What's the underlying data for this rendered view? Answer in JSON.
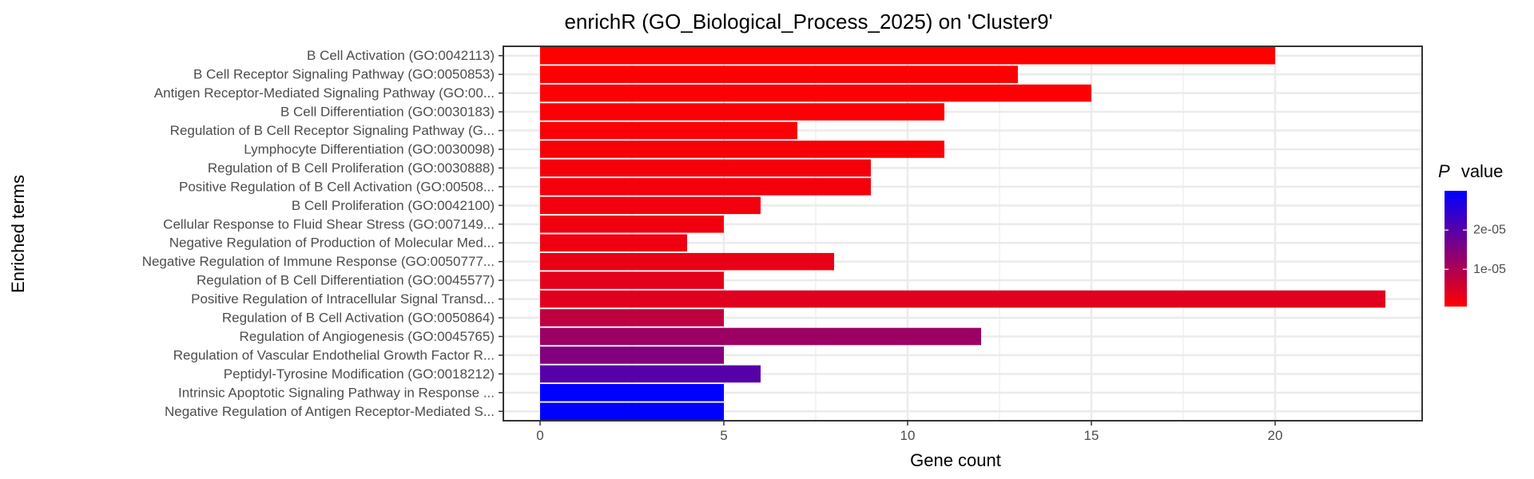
{
  "chart_data": {
    "type": "bar",
    "orientation": "horizontal",
    "title": "enrichR (GO_Biological_Process_2025) on 'Cluster9'",
    "xlabel": "Gene count",
    "ylabel": "Enriched terms",
    "xlim": [
      -1,
      24
    ],
    "x_ticks": [
      0,
      5,
      10,
      15,
      20
    ],
    "grid": true,
    "legend": {
      "title_italic": "P",
      "title_rest": "value",
      "placement": "right",
      "ticks": [
        {
          "label": "2e-05",
          "value": 2e-05
        },
        {
          "label": "1e-05",
          "value": 1e-05
        }
      ],
      "range": [
        5e-07,
        3e-05
      ],
      "low_color": "#ff0000",
      "high_color": "#0000ff"
    },
    "categories": [
      "B Cell Activation (GO:0042113)",
      "B Cell Receptor Signaling Pathway (GO:0050853)",
      "Antigen Receptor-Mediated Signaling Pathway (GO:00...",
      "B Cell Differentiation (GO:0030183)",
      "Regulation of B Cell Receptor Signaling Pathway (G...",
      "Lymphocyte Differentiation (GO:0030098)",
      "Regulation of B Cell Proliferation (GO:0030888)",
      "Positive Regulation of B Cell Activation (GO:00508...",
      "B Cell Proliferation (GO:0042100)",
      "Cellular Response to Fluid Shear Stress (GO:007149...",
      "Negative Regulation of Production of Molecular Med...",
      "Negative Regulation of Immune Response (GO:0050777...",
      "Regulation of B Cell Differentiation (GO:0045577)",
      "Positive Regulation of Intracellular Signal Transd...",
      "Regulation of B Cell Activation (GO:0050864)",
      "Regulation of Angiogenesis (GO:0045765)",
      "Regulation of Vascular Endothelial Growth Factor R...",
      "Peptidyl-Tyrosine Modification (GO:0018212)",
      "Intrinsic Apoptotic Signaling Pathway in Response ...",
      "Negative Regulation of Antigen Receptor-Mediated S..."
    ],
    "values": [
      20,
      13,
      15,
      11,
      7,
      11,
      9,
      9,
      6,
      5,
      4,
      8,
      5,
      23,
      5,
      12,
      5,
      6,
      5,
      5
    ],
    "p_values": [
      5e-07,
      7e-07,
      8e-07,
      1e-06,
      1.2e-06,
      1.4e-06,
      1.6e-06,
      1.8e-06,
      2e-06,
      2.2e-06,
      2.5e-06,
      3e-06,
      3.5e-06,
      4e-06,
      8e-06,
      1.2e-05,
      1.5e-05,
      2e-05,
      3e-05,
      3e-05
    ]
  }
}
